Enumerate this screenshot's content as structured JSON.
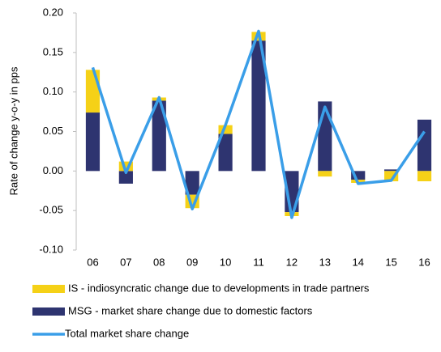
{
  "chart_data": {
    "type": "bar",
    "y_label": "Rate of change y-o-y in pps",
    "categories": [
      "06",
      "07",
      "08",
      "09",
      "10",
      "11",
      "12",
      "13",
      "14",
      "15",
      "16"
    ],
    "series": [
      {
        "name": "IS - indiosyncratic change due to developments in trade partners",
        "type": "bar",
        "color": "#f5d117",
        "values": [
          0.054,
          0.012,
          0.004,
          -0.017,
          0.011,
          0.011,
          -0.005,
          -0.007,
          -0.004,
          -0.013,
          -0.013
        ]
      },
      {
        "name": "MSG - market share change due to domestic factors",
        "type": "bar",
        "color": "#2e3470",
        "values": [
          0.074,
          -0.016,
          0.089,
          -0.03,
          0.047,
          0.165,
          -0.052,
          0.088,
          -0.011,
          0.002,
          0.065
        ]
      },
      {
        "name": "Total market share change",
        "type": "line",
        "color": "#3a9ee8",
        "values": [
          0.131,
          -0.002,
          0.093,
          -0.048,
          0.058,
          0.177,
          -0.059,
          0.081,
          -0.016,
          -0.012,
          0.05
        ]
      }
    ],
    "ylim": [
      -0.1,
      0.2
    ],
    "yticks": [
      {
        "value": -0.1,
        "label": "-0.10"
      },
      {
        "value": -0.05,
        "label": "-0.05"
      },
      {
        "value": 0,
        "label": "0.00"
      },
      {
        "value": 0.05,
        "label": "0.05"
      },
      {
        "value": 0.1,
        "label": "0.10"
      },
      {
        "value": 0.15,
        "label": "0.15"
      },
      {
        "value": 0.2,
        "label": "0.20"
      }
    ],
    "grid": false
  }
}
